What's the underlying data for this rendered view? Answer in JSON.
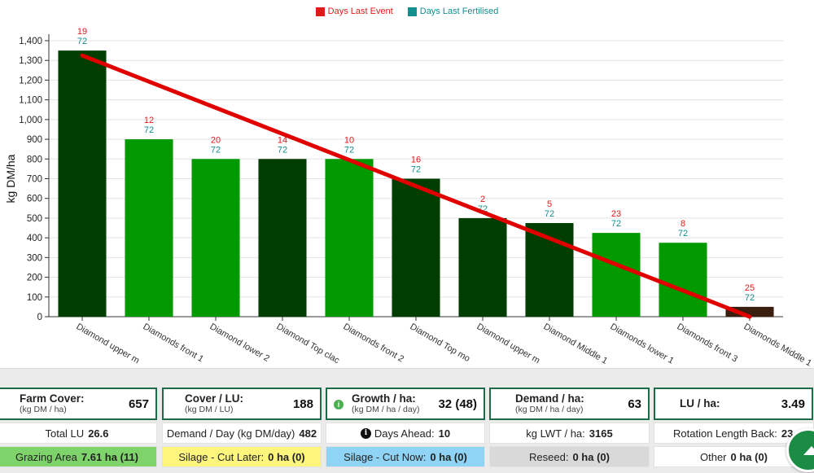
{
  "chart_data": {
    "type": "bar",
    "ylabel": "kg DM/ha",
    "xlabel": "",
    "ylim": [
      0,
      1400
    ],
    "yticks": [
      "0",
      "100",
      "200",
      "300",
      "400",
      "500",
      "600",
      "700",
      "800",
      "900",
      "1,000",
      "1,100",
      "1,200",
      "1,300",
      "1,400"
    ],
    "ytick_values": [
      0,
      100,
      200,
      300,
      400,
      500,
      600,
      700,
      800,
      900,
      1000,
      1100,
      1200,
      1300,
      1400
    ],
    "grid": true,
    "legend_position": "top-center",
    "legend": [
      {
        "name": "Days Last Event",
        "color": "#e41a1a"
      },
      {
        "name": "Days Last Fertilised",
        "color": "#138f8f"
      }
    ],
    "categories": [
      "Diamond upper m",
      "Diamonds front 1",
      "Diamond lower 2",
      "Diamond Top clac",
      "Diamonds front 2",
      "Diamond Top mo",
      "Diamond upper m",
      "Diamond Middle 1",
      "Diamonds lower 1",
      "Diamonds front 3",
      "Diamonds Middle 1"
    ],
    "values": [
      1350,
      900,
      800,
      800,
      800,
      700,
      500,
      475,
      425,
      375,
      50
    ],
    "bar_colors": [
      "#003d00",
      "#009900",
      "#009900",
      "#003d00",
      "#009900",
      "#003d00",
      "#003d00",
      "#003d00",
      "#009900",
      "#009900",
      "#3a1e0f"
    ],
    "days_last_event": [
      "19",
      "12",
      "20",
      "14",
      "10",
      "16",
      "2",
      "5",
      "23",
      "8",
      "25"
    ],
    "days_last_fertilised": [
      "72",
      "72",
      "72",
      "72",
      "72",
      "72",
      "72",
      "72",
      "72",
      "72",
      "72"
    ],
    "wedge_line": {
      "color": "#e00000",
      "start": 1325,
      "end": 0
    }
  },
  "summary": {
    "farm_cover": {
      "label": "Farm Cover:",
      "unit": "(kg DM / ha)",
      "value": "657"
    },
    "cover_lu": {
      "label": "Cover / LU:",
      "unit": "(kg DM / LU)",
      "value": "188"
    },
    "growth": {
      "label": "Growth / ha:",
      "unit": "(kg DM / ha / day)",
      "value": "32 (48)",
      "icon": "info-icon"
    },
    "demand": {
      "label": "Demand / ha:",
      "unit": "(kg DM / ha / day)",
      "value": "63"
    },
    "lu_ha": {
      "label": "LU / ha:",
      "value": "3.49"
    }
  },
  "details": {
    "total_lu": {
      "label": "Total LU",
      "value": "26.6"
    },
    "demand_day": {
      "label": "Demand / Day (kg DM/day)",
      "value": "482"
    },
    "days_ahead": {
      "label": "Days Ahead:",
      "value": "10"
    },
    "kg_lwt": {
      "label": "kg LWT / ha:",
      "value": "3165"
    },
    "rotation": {
      "label": "Rotation Length Back:",
      "value": "23"
    }
  },
  "areas": {
    "grazing": {
      "label": "Grazing Area",
      "value": "7.61 ha (11)",
      "color": "#7ed36a"
    },
    "silage_later": {
      "label": "Silage - Cut Later:",
      "value": "0 ha (0)",
      "color": "#fdf57c"
    },
    "silage_now": {
      "label": "Silage - Cut Now:",
      "value": "0 ha (0)",
      "color": "#8fd3f5"
    },
    "reseed": {
      "label": "Reseed:",
      "value": "0 ha (0)",
      "color": "#d9d9d9"
    },
    "other": {
      "label": "Other",
      "value": "0 ha (0)",
      "color": "#ffffff"
    }
  }
}
